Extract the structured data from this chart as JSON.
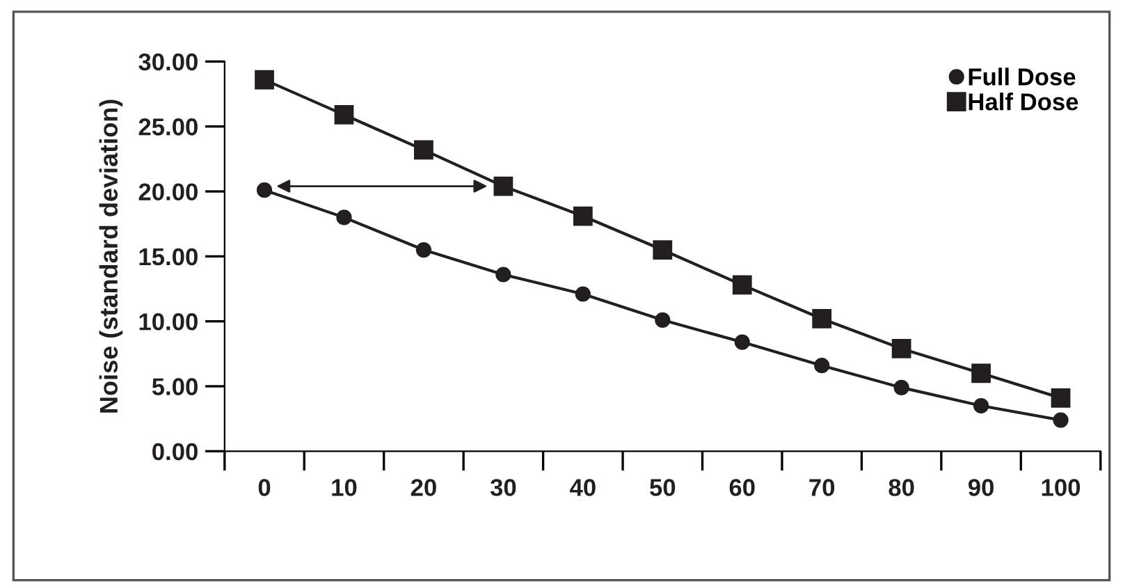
{
  "chart_data": {
    "type": "line",
    "ylabel": "Noise (standard deviation)",
    "categories": [
      "0",
      "10",
      "20",
      "30",
      "40",
      "50",
      "60",
      "70",
      "80",
      "90",
      "100"
    ],
    "series": [
      {
        "name": "Full Dose",
        "color": "#231f20",
        "marker": "circle",
        "values": [
          20.1,
          18.0,
          15.5,
          13.6,
          12.1,
          10.1,
          8.4,
          6.6,
          4.9,
          3.5,
          2.4
        ]
      },
      {
        "name": "Half Dose",
        "color": "#231f20",
        "marker": "square",
        "values": [
          28.6,
          25.9,
          23.2,
          20.4,
          18.1,
          15.5,
          12.8,
          10.2,
          7.9,
          6.0,
          4.1
        ]
      }
    ],
    "ylim": [
      0,
      30
    ],
    "yticks": [
      {
        "value": 0,
        "label": "0.00"
      },
      {
        "value": 5,
        "label": "5.00"
      },
      {
        "value": 10,
        "label": "10.00"
      },
      {
        "value": 15,
        "label": "15.00"
      },
      {
        "value": 20,
        "label": "20.00"
      },
      {
        "value": 25,
        "label": "25.00"
      },
      {
        "value": 30,
        "label": "30.00"
      }
    ],
    "grid": false,
    "legend": "top right",
    "line_style": "solid"
  }
}
